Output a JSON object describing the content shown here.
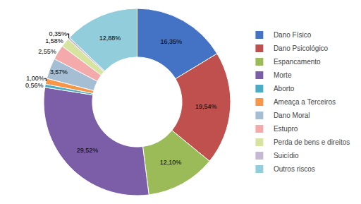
{
  "chart_data": {
    "type": "donut",
    "categories": [
      "Dano Físico",
      "Dano Psicológico",
      "Espancamento",
      "Morte",
      "Aborto",
      "Ameaça a Terceiros",
      "Dano Moral",
      "Estupro",
      "Perda de bens e direitos",
      "Suicídio",
      "Outros riscos"
    ],
    "values": [
      16.35,
      19.54,
      12.1,
      29.52,
      0.56,
      1.0,
      3.57,
      2.55,
      1.58,
      0.35,
      12.88
    ],
    "value_labels": [
      "16,35%",
      "19,54%",
      "12,10%",
      "29,52%",
      "0,56%",
      "1,00%",
      "3,57%",
      "2,55%",
      "1,58%",
      "0,35%",
      "12,88%"
    ],
    "colors": [
      "#4472C4",
      "#C0504D",
      "#9BBB59",
      "#7B5EA7",
      "#4BACC6",
      "#F79646",
      "#A5BED4",
      "#F4AAAA",
      "#D7E4A0",
      "#C4B8D4",
      "#92CDDC"
    ],
    "data_labels": true,
    "legend": "right"
  }
}
